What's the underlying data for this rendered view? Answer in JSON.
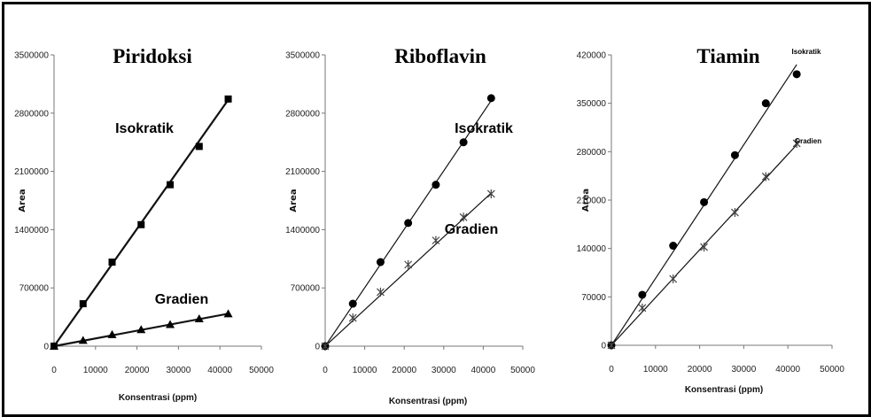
{
  "chart_data": [
    {
      "type": "scatter",
      "title": "Piridoksi",
      "xlabel": "Konsentrasi (ppm)",
      "ylabel": "Area",
      "xlim": [
        0,
        50000
      ],
      "ylim": [
        0,
        3500000
      ],
      "x_ticks": [
        "0",
        "10000",
        "20000",
        "30000",
        "40000",
        "50000"
      ],
      "y_ticks": [
        "0",
        "700000",
        "1400000",
        "2100000",
        "2800000",
        "3500000"
      ],
      "series": [
        {
          "name": "Isokratik",
          "marker": "square",
          "x": [
            0,
            7000,
            14000,
            21000,
            28000,
            35000,
            42000
          ],
          "y": [
            0,
            510000,
            1010000,
            1460000,
            1940000,
            2400000,
            2970000
          ],
          "fit": [
            [
              0,
              0
            ],
            [
              42000,
              2960000
            ]
          ]
        },
        {
          "name": "Gradien",
          "marker": "triangle",
          "x": [
            0,
            7000,
            14000,
            21000,
            28000,
            35000,
            42000
          ],
          "y": [
            0,
            70000,
            140000,
            200000,
            260000,
            330000,
            390000
          ],
          "fit": [
            [
              0,
              0
            ],
            [
              42000,
              390000
            ]
          ]
        }
      ]
    },
    {
      "type": "scatter",
      "title": "Riboflavin",
      "xlabel": "Konsentrasi (ppm)",
      "ylabel": "Area",
      "xlim": [
        0,
        50000
      ],
      "ylim": [
        0,
        3500000
      ],
      "x_ticks": [
        "0",
        "10000",
        "20000",
        "30000",
        "40000",
        "50000"
      ],
      "y_ticks": [
        "0",
        "700000",
        "1400000",
        "2100000",
        "2800000",
        "3500000"
      ],
      "series": [
        {
          "name": "Isokratik",
          "marker": "circle",
          "x": [
            0,
            7000,
            14000,
            21000,
            28000,
            35000,
            42000
          ],
          "y": [
            0,
            510000,
            1010000,
            1480000,
            1940000,
            2450000,
            2980000
          ],
          "fit": [
            [
              0,
              0
            ],
            [
              42000,
              2950000
            ]
          ]
        },
        {
          "name": "Gradien",
          "marker": "star",
          "x": [
            0,
            7000,
            14000,
            21000,
            28000,
            35000,
            42000
          ],
          "y": [
            0,
            340000,
            650000,
            980000,
            1270000,
            1550000,
            1830000
          ],
          "fit": [
            [
              0,
              0
            ],
            [
              42000,
              1840000
            ]
          ]
        }
      ]
    },
    {
      "type": "scatter",
      "title": "Tiamin",
      "xlabel": "Konsentrasi (ppm)",
      "ylabel": "Area",
      "xlim": [
        0,
        50000
      ],
      "ylim": [
        0,
        420000
      ],
      "x_ticks": [
        "0",
        "10000",
        "20000",
        "30000",
        "40000",
        "50000"
      ],
      "y_ticks": [
        "0",
        "70000",
        "140000",
        "210000",
        "280000",
        "350000",
        "420000"
      ],
      "series": [
        {
          "name": "Isokratik",
          "marker": "circle",
          "x": [
            0,
            7000,
            14000,
            21000,
            28000,
            35000,
            42000
          ],
          "y": [
            0,
            73000,
            144000,
            207000,
            275000,
            350000,
            392000
          ],
          "fit": [
            [
              0,
              0
            ],
            [
              42000,
              406000
            ]
          ]
        },
        {
          "name": "Gradien",
          "marker": "star",
          "x": [
            0,
            7000,
            14000,
            21000,
            28000,
            35000,
            42000
          ],
          "y": [
            0,
            54000,
            96000,
            142000,
            192000,
            244000,
            292000
          ],
          "fit": [
            [
              0,
              0
            ],
            [
              42000,
              290000
            ]
          ]
        }
      ]
    }
  ]
}
